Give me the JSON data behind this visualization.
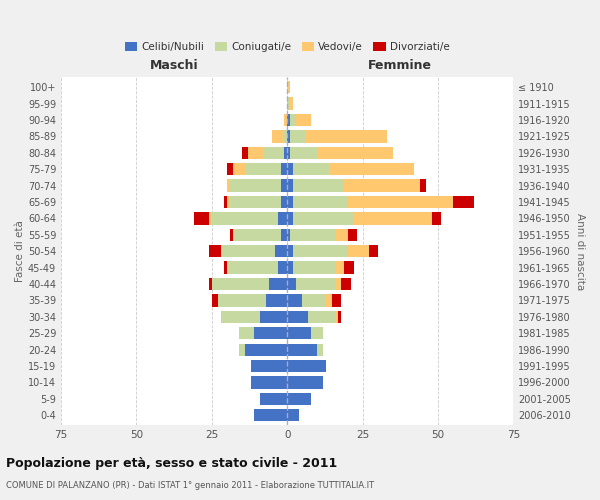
{
  "age_groups": [
    "100+",
    "95-99",
    "90-94",
    "85-89",
    "80-84",
    "75-79",
    "70-74",
    "65-69",
    "60-64",
    "55-59",
    "50-54",
    "45-49",
    "40-44",
    "35-39",
    "30-34",
    "25-29",
    "20-24",
    "15-19",
    "10-14",
    "5-9",
    "0-4"
  ],
  "birth_years": [
    "≤ 1910",
    "1911-1915",
    "1916-1920",
    "1921-1925",
    "1926-1930",
    "1931-1935",
    "1936-1940",
    "1941-1945",
    "1946-1950",
    "1951-1955",
    "1956-1960",
    "1961-1965",
    "1966-1970",
    "1971-1975",
    "1976-1980",
    "1981-1985",
    "1986-1990",
    "1991-1995",
    "1996-2000",
    "2001-2005",
    "2006-2010"
  ],
  "male": {
    "celibi": [
      0,
      0,
      0,
      0,
      1,
      2,
      2,
      2,
      3,
      2,
      4,
      3,
      6,
      7,
      9,
      11,
      14,
      12,
      12,
      9,
      11
    ],
    "coniugati": [
      0,
      0,
      0,
      1,
      7,
      12,
      17,
      17,
      22,
      16,
      18,
      17,
      19,
      16,
      13,
      5,
      2,
      0,
      0,
      0,
      0
    ],
    "vedovi": [
      0,
      0,
      1,
      4,
      5,
      4,
      1,
      1,
      1,
      0,
      0,
      0,
      0,
      0,
      0,
      0,
      0,
      0,
      0,
      0,
      0
    ],
    "divorziati": [
      0,
      0,
      0,
      0,
      2,
      2,
      0,
      1,
      5,
      1,
      4,
      1,
      1,
      2,
      0,
      0,
      0,
      0,
      0,
      0,
      0
    ]
  },
  "female": {
    "nubili": [
      0,
      0,
      1,
      1,
      1,
      2,
      2,
      2,
      2,
      1,
      2,
      2,
      3,
      5,
      7,
      8,
      10,
      13,
      12,
      8,
      4
    ],
    "coniugate": [
      0,
      1,
      2,
      5,
      9,
      12,
      17,
      18,
      20,
      15,
      18,
      14,
      13,
      8,
      9,
      4,
      2,
      0,
      0,
      0,
      0
    ],
    "vedove": [
      1,
      1,
      5,
      27,
      25,
      28,
      25,
      35,
      26,
      4,
      7,
      3,
      2,
      2,
      1,
      0,
      0,
      0,
      0,
      0,
      0
    ],
    "divorziate": [
      0,
      0,
      0,
      0,
      0,
      0,
      2,
      7,
      3,
      3,
      3,
      3,
      3,
      3,
      1,
      0,
      0,
      0,
      0,
      0,
      0
    ]
  },
  "colors": {
    "celibi": "#4472c4",
    "coniugati": "#c5d9a0",
    "vedovi": "#ffc86e",
    "divorziati": "#cc0000"
  },
  "xlim": 75,
  "title": "Popolazione per età, sesso e stato civile - 2011",
  "subtitle": "COMUNE DI PALANZANO (PR) - Dati ISTAT 1° gennaio 2011 - Elaborazione TUTTITALIA.IT",
  "ylabel_left": "Fasce di età",
  "ylabel_right": "Anni di nascita",
  "xlabel_left": "Maschi",
  "xlabel_right": "Femmine",
  "bg_color": "#f0f0f0",
  "plot_bg_color": "#ffffff"
}
